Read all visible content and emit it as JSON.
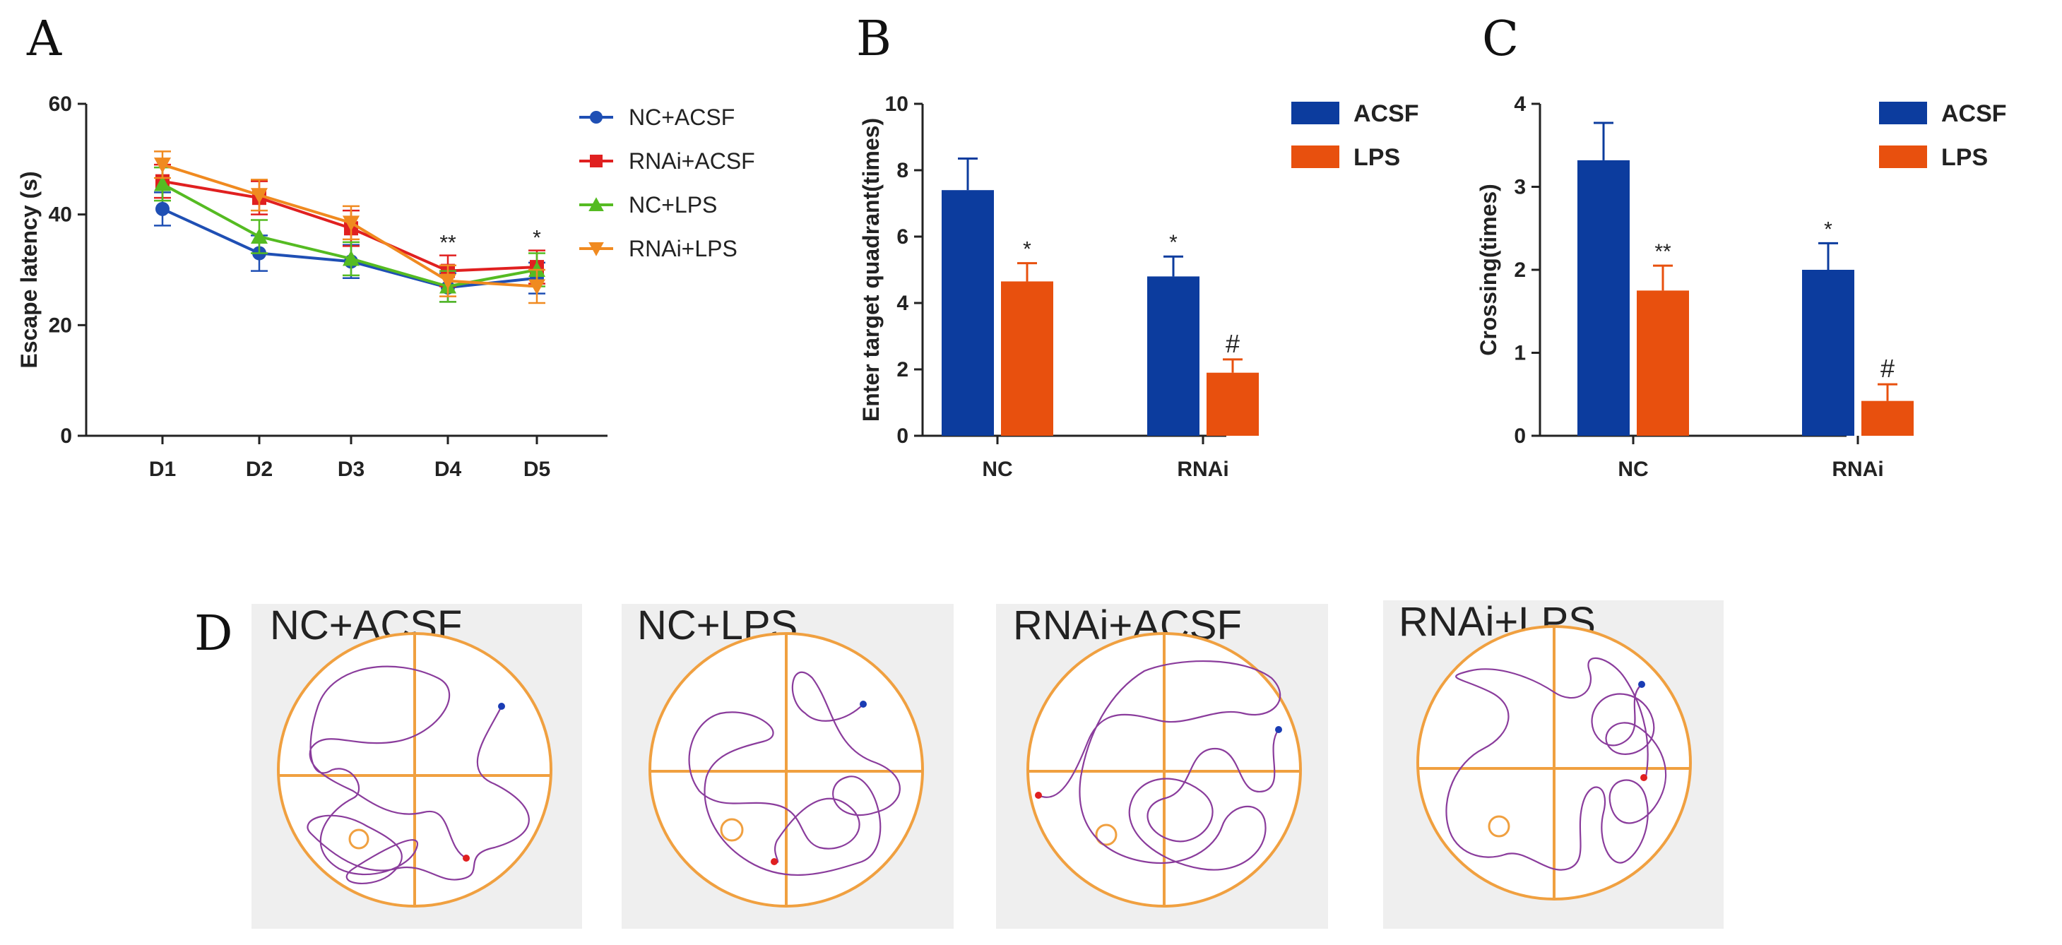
{
  "chart_data": [
    {
      "panel": "A",
      "type": "line",
      "xlabel": "",
      "ylabel": "Escape latency (s)",
      "ylim": [
        0,
        60
      ],
      "yticks": [
        "0",
        "20",
        "40",
        "60"
      ],
      "categories": [
        "D1",
        "D2",
        "D3",
        "D4",
        "D5"
      ],
      "series": [
        {
          "name": "NC+ACSF",
          "color": "#1f4fb4",
          "marker": "circle",
          "values": [
            41,
            33,
            31.5,
            26.8,
            28.5
          ],
          "errors": [
            3,
            3.2,
            3,
            2.6,
            2.8
          ]
        },
        {
          "name": "RNAi+ACSF",
          "color": "#e02020",
          "marker": "square",
          "values": [
            46,
            43,
            37.5,
            29.8,
            30.5
          ],
          "errors": [
            3,
            3,
            3.2,
            2.8,
            3
          ]
        },
        {
          "name": "NC+LPS",
          "color": "#55bb22",
          "marker": "triangle-up",
          "values": [
            45.5,
            36,
            32,
            27,
            30
          ],
          "errors": [
            3,
            3,
            3,
            2.8,
            3
          ]
        },
        {
          "name": "RNAi+LPS",
          "color": "#f08a20",
          "marker": "triangle-down",
          "values": [
            49,
            43.5,
            38.5,
            28,
            27
          ],
          "errors": [
            2.4,
            2.8,
            3,
            2.8,
            3
          ]
        }
      ],
      "annotations": [
        {
          "category": "D4",
          "text": "**"
        },
        {
          "category": "D5",
          "text": "*"
        }
      ]
    },
    {
      "panel": "B",
      "type": "bar",
      "xlabel": "",
      "ylabel": "Enter target quadrant(times)",
      "ylim": [
        0,
        10
      ],
      "yticks": [
        "0",
        "2",
        "4",
        "6",
        "8",
        "10"
      ],
      "categories": [
        "NC",
        "RNAi"
      ],
      "series": [
        {
          "name": "ACSF",
          "color": "#0c3c9e",
          "values": [
            7.4,
            4.8
          ],
          "errors": [
            0.95,
            0.6
          ]
        },
        {
          "name": "LPS",
          "color": "#e8500e",
          "values": [
            4.65,
            1.9
          ],
          "errors": [
            0.55,
            0.4
          ]
        }
      ],
      "annotations": [
        {
          "category": "NC",
          "series": "LPS",
          "text": "*"
        },
        {
          "category": "RNAi",
          "series": "ACSF",
          "text": "*"
        },
        {
          "category": "RNAi",
          "series": "LPS",
          "text": "#"
        }
      ]
    },
    {
      "panel": "C",
      "type": "bar",
      "xlabel": "",
      "ylabel": "Crossing(times)",
      "ylim": [
        0,
        4
      ],
      "yticks": [
        "0",
        "1",
        "2",
        "3",
        "4"
      ],
      "categories": [
        "NC",
        "RNAi"
      ],
      "series": [
        {
          "name": "ACSF",
          "color": "#0c3c9e",
          "values": [
            3.32,
            2.0
          ],
          "errors": [
            0.45,
            0.32
          ]
        },
        {
          "name": "LPS",
          "color": "#e8500e",
          "values": [
            1.75,
            0.42
          ],
          "errors": [
            0.3,
            0.2
          ]
        }
      ],
      "annotations": [
        {
          "category": "NC",
          "series": "LPS",
          "text": "**"
        },
        {
          "category": "RNAi",
          "series": "ACSF",
          "text": "*"
        },
        {
          "category": "RNAi",
          "series": "LPS",
          "text": "#"
        }
      ]
    }
  ],
  "panel_d": {
    "letter": "D",
    "tracks": [
      {
        "title": "NC+ACSF"
      },
      {
        "title": "NC+LPS"
      },
      {
        "title": "RNAi+ACSF"
      },
      {
        "title": "RNAi+LPS"
      }
    ]
  },
  "panel_letters": {
    "a": "A",
    "b": "B",
    "c": "C"
  },
  "colors": {
    "axis": "#222222",
    "pool": "#f0a040",
    "path": "#8a3c9c",
    "start": "#1a3cb4",
    "end": "#e02020",
    "bg": "#efefef"
  }
}
